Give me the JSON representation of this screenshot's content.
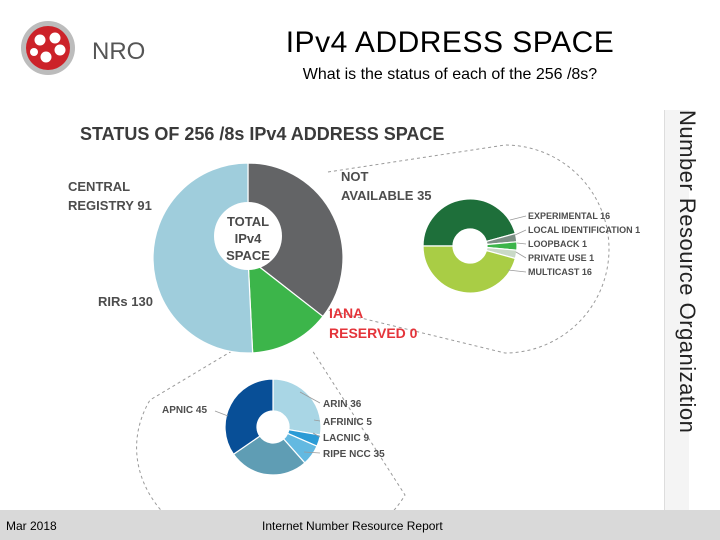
{
  "slide": {
    "title": "IPv4 ADDRESS SPACE",
    "subtitle": "What is the status of each of the 256 /8s?",
    "logo_text": "NRO",
    "side_banner": "Number Resource Organization",
    "footer_date": "Mar 2018",
    "footer_report": "Internet Number Resource Report"
  },
  "chart_data": [
    {
      "type": "pie",
      "title": "STATUS OF 256 /8s IPv4 ADDRESS SPACE",
      "center_label": [
        "TOTAL",
        "IPv4",
        "SPACE"
      ],
      "slices": [
        {
          "name": "CENTRAL REGISTRY",
          "label": "CENTRAL REGISTRY 91",
          "value": 91,
          "color": "#636466"
        },
        {
          "name": "NOT AVAILABLE",
          "label": "NOT AVAILABLE 35",
          "value": 35,
          "color": "#3cb54a"
        },
        {
          "name": "RIRs",
          "label": "RIRs 130",
          "value": 130,
          "color": "#9fcddc"
        },
        {
          "name": "IANA RESERVED",
          "label": "IANA RESERVED 0",
          "value": 0,
          "color": "#e4343a"
        }
      ]
    },
    {
      "type": "pie",
      "title": "",
      "parent": "NOT AVAILABLE",
      "slices": [
        {
          "name": "EXPERIMENTAL",
          "label": "EXPERIMENTAL 16",
          "value": 16,
          "color": "#1e6f3a"
        },
        {
          "name": "LOCAL IDENTIFICATION",
          "label": "LOCAL IDENTIFICATION 1",
          "value": 1,
          "color": "#7c8f85"
        },
        {
          "name": "LOOPBACK",
          "label": "LOOPBACK 1",
          "value": 1,
          "color": "#3cb54a"
        },
        {
          "name": "PRIVATE USE",
          "label": "PRIVATE USE 1",
          "value": 1,
          "color": "#c9d9c6"
        },
        {
          "name": "MULTICAST",
          "label": "MULTICAST 16",
          "value": 16,
          "color": "#a9cd45"
        }
      ]
    },
    {
      "type": "pie",
      "title": "",
      "parent": "RIRs",
      "slices": [
        {
          "name": "ARIN",
          "label": "ARIN 36",
          "value": 36,
          "color": "#a9d6e5"
        },
        {
          "name": "AFRINIC",
          "label": "AFRINIC 5",
          "value": 5,
          "color": "#2b9bd6"
        },
        {
          "name": "LACNIC",
          "label": "LACNIC 9",
          "value": 9,
          "color": "#63b9e1"
        },
        {
          "name": "RIPE NCC",
          "label": "RIPE NCC 35",
          "value": 35,
          "color": "#5f9db4"
        },
        {
          "name": "APNIC",
          "label": "APNIC 45",
          "value": 45,
          "color": "#084f97"
        }
      ]
    }
  ]
}
